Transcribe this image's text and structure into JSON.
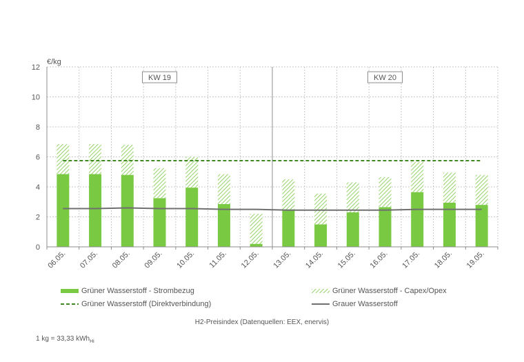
{
  "chart_data": {
    "type": "bar",
    "ylabel": "€/kg",
    "ylim": [
      0,
      12
    ],
    "yticks": [
      "0",
      "2",
      "4",
      "6",
      "8",
      "10",
      "12"
    ],
    "categories": [
      "06.05.",
      "07.05.",
      "08.05.",
      "09.05.",
      "10.05.",
      "11.05.",
      "12.05.",
      "13.05.",
      "14.05.",
      "15.05.",
      "16.05.",
      "17.05.",
      "18.05.",
      "19.05."
    ],
    "series": [
      {
        "name": "Grüner Wasserstoff - Strombezug",
        "kind": "stacked-bar",
        "color": "#7ac943",
        "values": [
          4.85,
          4.85,
          4.8,
          3.25,
          3.95,
          2.85,
          0.2,
          2.5,
          1.5,
          2.3,
          2.65,
          3.65,
          2.95,
          2.8
        ]
      },
      {
        "name": "Grüner Wasserstoff - Capex/Opex",
        "kind": "stacked-bar-hatched",
        "color": "#7ac943",
        "values": [
          2.0,
          2.0,
          2.0,
          2.0,
          2.05,
          2.0,
          2.0,
          2.0,
          2.05,
          2.0,
          2.0,
          2.0,
          2.0,
          2.0
        ]
      },
      {
        "name": "Grüner Wasserstoff (Direktverbindung)",
        "kind": "dashed-line",
        "color": "#3e8a1f",
        "values": [
          5.75,
          5.75,
          5.75,
          5.75,
          5.75,
          5.75,
          5.75,
          5.75,
          5.75,
          5.75,
          5.75,
          5.75,
          5.75,
          5.75
        ]
      },
      {
        "name": "Grauer Wasserstoff",
        "kind": "line",
        "color": "#6f6f6f",
        "values": [
          2.55,
          2.55,
          2.6,
          2.55,
          2.55,
          2.5,
          2.5,
          2.45,
          2.45,
          2.45,
          2.45,
          2.5,
          2.5,
          2.5
        ]
      }
    ],
    "week_labels": [
      "KW 19",
      "KW 20"
    ],
    "grid": true,
    "legend_position": "bottom"
  },
  "caption": "H2-Preisindex (Datenquellen: EEX, enervis)",
  "footnote": {
    "main": "1 kg = 33,33 kWh",
    "sub": "Hi"
  }
}
